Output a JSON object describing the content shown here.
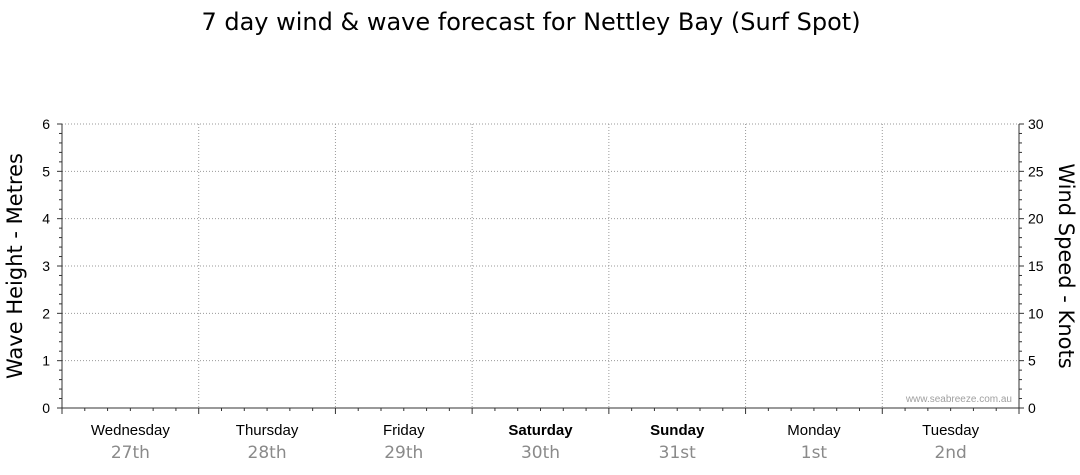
{
  "chart_data": {
    "type": "line",
    "title": "7 day wind & wave forecast for Nettley Bay  (Surf Spot)",
    "ylabel_left": "Wave Height - Metres",
    "ylabel_right": "Wind Speed - Knots",
    "ylim_left": [
      0,
      6
    ],
    "ylim_right": [
      0,
      30
    ],
    "yticks_left": [
      "0",
      "1",
      "2",
      "3",
      "4",
      "5",
      "6"
    ],
    "yticks_right": [
      "0",
      "5",
      "10",
      "15",
      "20",
      "25",
      "30"
    ],
    "grid": true,
    "days": [
      {
        "name": "Wednesday",
        "date": "27th",
        "bold": false
      },
      {
        "name": "Thursday",
        "date": "28th",
        "bold": false
      },
      {
        "name": "Friday",
        "date": "29th",
        "bold": false
      },
      {
        "name": "Saturday",
        "date": "30th",
        "bold": true
      },
      {
        "name": "Sunday",
        "date": "31st",
        "bold": true
      },
      {
        "name": "Monday",
        "date": "1st",
        "bold": false
      },
      {
        "name": "Tuesday",
        "date": "2nd",
        "bold": false
      }
    ],
    "series": [],
    "watermark": "www.seabreeze.com.au"
  }
}
